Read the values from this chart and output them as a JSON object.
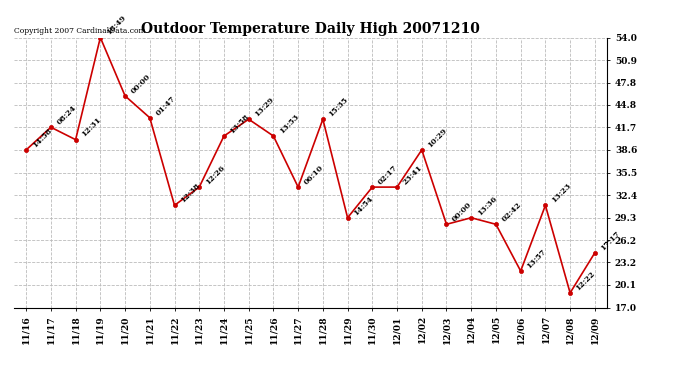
{
  "title": "Outdoor Temperature Daily High 20071210",
  "copyright": "Copyright 2007 CardinalData.com",
  "x_labels": [
    "11/16",
    "11/17",
    "11/18",
    "11/19",
    "11/20",
    "11/21",
    "11/22",
    "11/23",
    "11/24",
    "11/25",
    "11/26",
    "11/27",
    "11/28",
    "11/29",
    "11/30",
    "12/01",
    "12/02",
    "12/03",
    "12/04",
    "12/05",
    "12/06",
    "12/07",
    "12/08",
    "12/09"
  ],
  "y_values": [
    38.6,
    41.7,
    40.0,
    54.0,
    46.0,
    43.0,
    31.0,
    33.5,
    40.5,
    42.8,
    40.5,
    33.5,
    42.8,
    29.3,
    33.5,
    33.5,
    38.6,
    28.4,
    29.3,
    28.4,
    22.0,
    31.0,
    19.0,
    24.5
  ],
  "annotations": [
    "14:58",
    "08:24",
    "12:31",
    "18:49",
    "00:00",
    "01:47",
    "12:38",
    "12:26",
    "13:58",
    "13:29",
    "13:53",
    "06:10",
    "15:35",
    "14:54",
    "02:17",
    "23:41",
    "10:29",
    "00:00",
    "13:36",
    "02:42",
    "13:57",
    "13:23",
    "12:22",
    "17:17"
  ],
  "y_ticks": [
    17.0,
    20.1,
    23.2,
    26.2,
    29.3,
    32.4,
    35.5,
    38.6,
    41.7,
    44.8,
    47.8,
    50.9,
    54.0
  ],
  "y_min": 17.0,
  "y_max": 54.0,
  "line_color": "#cc0000",
  "marker_color": "#cc0000",
  "bg_color": "#ffffff",
  "grid_color": "#bbbbbb",
  "title_fontsize": 10,
  "annot_fontsize": 5.5,
  "tick_fontsize": 6.5,
  "copyright_fontsize": 5.5
}
